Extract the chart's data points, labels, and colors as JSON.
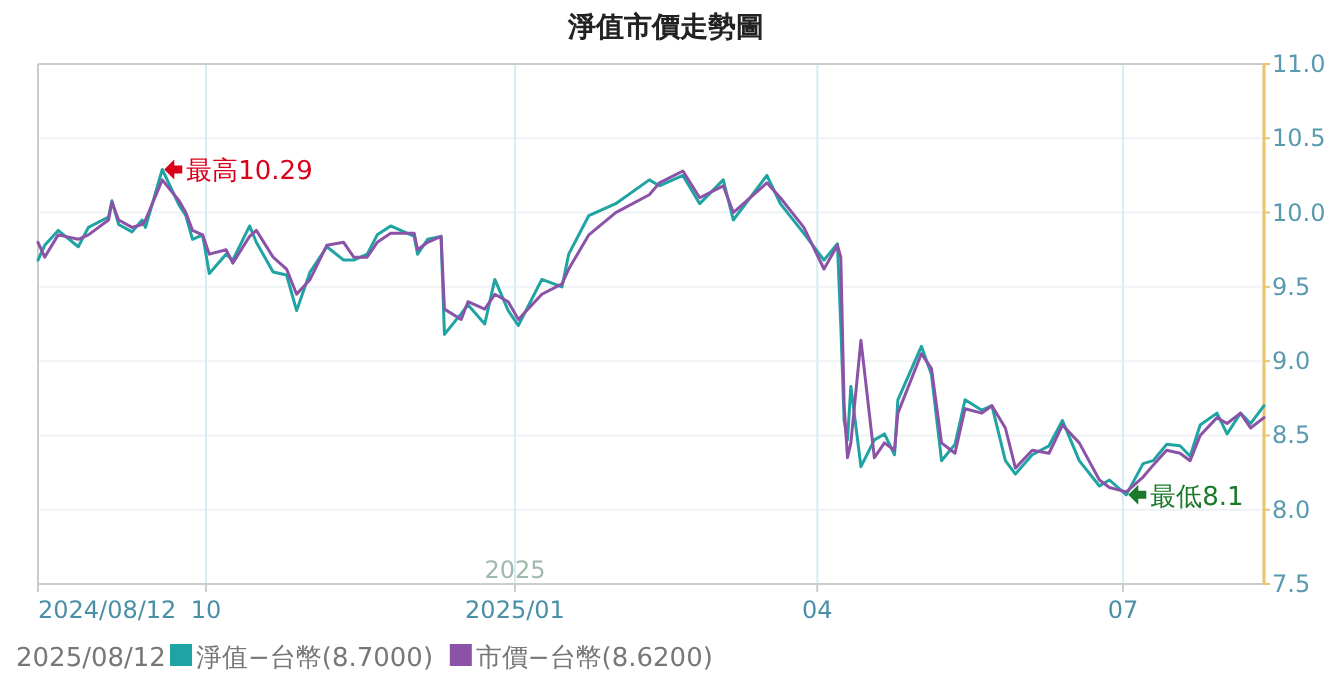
{
  "chart_data": {
    "type": "line",
    "title": "淨值市價走勢圖",
    "legend_title": "2025/08/12",
    "legend": "bottom",
    "grid": true,
    "marker": "none",
    "line_style": "solid",
    "x": [
      "2024-08-12",
      "2024-08-14",
      "2024-08-18",
      "2024-08-24",
      "2024-08-27",
      "2024-09-02",
      "2024-09-03",
      "2024-09-05",
      "2024-09-09",
      "2024-09-12",
      "2024-09-13",
      "2024-09-18",
      "2024-09-23",
      "2024-09-25",
      "2024-09-27",
      "2024-09-30",
      "2024-10-02",
      "2024-10-07",
      "2024-10-09",
      "2024-10-14",
      "2024-10-16",
      "2024-10-21",
      "2024-10-25",
      "2024-10-28",
      "2024-11-01",
      "2024-11-06",
      "2024-11-11",
      "2024-11-14",
      "2024-11-18",
      "2024-11-21",
      "2024-11-25",
      "2024-12-02",
      "2024-12-03",
      "2024-12-06",
      "2024-12-10",
      "2024-12-11",
      "2024-12-16",
      "2024-12-18",
      "2024-12-23",
      "2024-12-26",
      "2024-12-30",
      "2025-01-02",
      "2025-01-09",
      "2025-01-15",
      "2025-01-17",
      "2025-01-23",
      "2025-01-31",
      "2025-02-10",
      "2025-02-13",
      "2025-02-20",
      "2025-02-25",
      "2025-03-04",
      "2025-03-07",
      "2025-03-17",
      "2025-03-21",
      "2025-03-28",
      "2025-04-03",
      "2025-04-07",
      "2025-04-08",
      "2025-04-09",
      "2025-04-10",
      "2025-04-11",
      "2025-04-14",
      "2025-04-18",
      "2025-04-21",
      "2025-04-24",
      "2025-04-25",
      "2025-05-02",
      "2025-05-05",
      "2025-05-08",
      "2025-05-12",
      "2025-05-15",
      "2025-05-20",
      "2025-05-23",
      "2025-05-27",
      "2025-05-30",
      "2025-06-04",
      "2025-06-09",
      "2025-06-13",
      "2025-06-18",
      "2025-06-24",
      "2025-06-27",
      "2025-07-02",
      "2025-07-07",
      "2025-07-10",
      "2025-07-14",
      "2025-07-18",
      "2025-07-21",
      "2025-07-24",
      "2025-07-29",
      "2025-08-01",
      "2025-08-05",
      "2025-08-08",
      "2025-08-12"
    ],
    "series": [
      {
        "name": "淨值−台幣(8.7000)",
        "color": "#1fa3a3",
        "values": [
          9.68,
          9.78,
          9.88,
          9.77,
          9.9,
          9.97,
          10.08,
          9.92,
          9.87,
          9.95,
          9.9,
          10.29,
          10.05,
          9.98,
          9.82,
          9.85,
          9.59,
          9.72,
          9.68,
          9.91,
          9.8,
          9.6,
          9.58,
          9.34,
          9.6,
          9.77,
          9.68,
          9.68,
          9.72,
          9.85,
          9.91,
          9.84,
          9.72,
          9.82,
          9.84,
          9.18,
          9.32,
          9.38,
          9.25,
          9.55,
          9.34,
          9.24,
          9.55,
          9.5,
          9.72,
          9.98,
          10.06,
          10.22,
          10.18,
          10.25,
          10.06,
          10.22,
          9.95,
          10.25,
          10.06,
          9.86,
          9.68,
          9.79,
          9.24,
          8.6,
          8.47,
          8.83,
          8.29,
          8.47,
          8.51,
          8.37,
          8.74,
          9.1,
          8.91,
          8.33,
          8.44,
          8.74,
          8.67,
          8.7,
          8.33,
          8.24,
          8.37,
          8.43,
          8.6,
          8.33,
          8.16,
          8.2,
          8.1,
          8.31,
          8.33,
          8.44,
          8.43,
          8.36,
          8.57,
          8.65,
          8.51,
          8.65,
          8.58,
          8.7
        ]
      },
      {
        "name": "市價−台幣(8.6200)",
        "color": "#8c52a8",
        "values": [
          9.8,
          9.7,
          9.85,
          9.82,
          9.85,
          9.95,
          10.07,
          9.95,
          9.9,
          9.92,
          9.95,
          10.22,
          10.08,
          10.0,
          9.88,
          9.85,
          9.72,
          9.75,
          9.66,
          9.84,
          9.88,
          9.7,
          9.62,
          9.45,
          9.55,
          9.78,
          9.8,
          9.7,
          9.7,
          9.8,
          9.86,
          9.86,
          9.75,
          9.8,
          9.84,
          9.35,
          9.28,
          9.4,
          9.35,
          9.45,
          9.4,
          9.28,
          9.45,
          9.52,
          9.62,
          9.85,
          10.0,
          10.12,
          10.2,
          10.28,
          10.1,
          10.18,
          10.0,
          10.2,
          10.1,
          9.9,
          9.62,
          9.78,
          9.7,
          8.7,
          8.35,
          8.45,
          9.14,
          8.35,
          8.45,
          8.4,
          8.65,
          9.05,
          8.95,
          8.45,
          8.38,
          8.68,
          8.65,
          8.7,
          8.55,
          8.28,
          8.4,
          8.38,
          8.57,
          8.45,
          8.2,
          8.15,
          8.12,
          8.22,
          8.3,
          8.4,
          8.38,
          8.33,
          8.5,
          8.62,
          8.58,
          8.65,
          8.55,
          8.62
        ]
      }
    ],
    "xlim": [
      "2024-08-12",
      "2025-08-12"
    ],
    "xticks": [
      {
        "value": "2024-08-12",
        "label": "2024/08/12"
      },
      {
        "value": "2024-10-01",
        "label": "10"
      },
      {
        "value": "2025-01-01",
        "label": "2025/01"
      },
      {
        "value": "2025-04-01",
        "label": "04"
      },
      {
        "value": "2025-07-01",
        "label": "07"
      }
    ],
    "ylim": [
      7.5,
      11
    ],
    "yticks": [
      7.5,
      {
        "value": 8,
        "label": "8.0"
      },
      8.5,
      {
        "value": 9,
        "label": "9.0"
      },
      9.5,
      {
        "value": 10,
        "label": "10.0"
      },
      10.5,
      {
        "value": 11,
        "label": "11.0"
      }
    ],
    "annotations": [
      {
        "text": "最高10.29",
        "x": "2024-09-18",
        "y": 10.29
      },
      {
        "text": "最低8.1",
        "x": "2025-07-02",
        "y": 8.1
      },
      "2025"
    ]
  }
}
